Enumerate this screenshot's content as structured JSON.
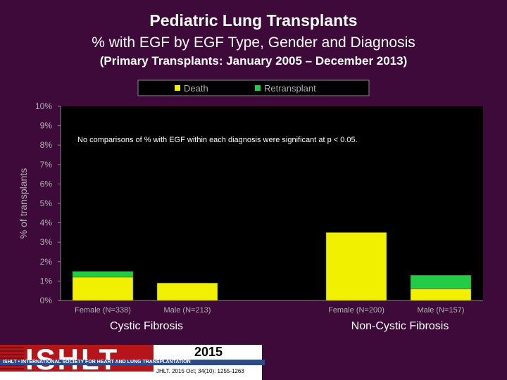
{
  "header": {
    "title": "Pediatric Lung Transplants",
    "subtitle": "% with EGF by EGF Type, Gender and Diagnosis",
    "period": "(Primary Transplants: January 2005 – December 2013)"
  },
  "note": "No comparisons of % with EGF within each diagnosis were significant at p < 0.05.",
  "footer": {
    "logo": "ISHLT",
    "org": "ISHLT • INTERNATIONAL SOCIETY FOR HEART AND LUNG TRANSPLANTATION",
    "year": "2015",
    "citation": "JHLT. 2015 Oct; 34(10): 1255-1263"
  },
  "colors": {
    "background": "#3d0a3a",
    "plot_background": "#000000",
    "death": "#f0f000",
    "retransplant": "#22cc44"
  },
  "chart_data": {
    "type": "bar",
    "stacked": true,
    "ylabel": "% of transplants",
    "ylim": [
      0,
      10
    ],
    "yticks": [
      "0%",
      "1%",
      "2%",
      "3%",
      "4%",
      "5%",
      "6%",
      "7%",
      "8%",
      "9%",
      "10%"
    ],
    "legend_position": "top",
    "grid": false,
    "categories": [
      "Female (N=338)",
      "Male (N=213)",
      "",
      "Female (N=200)",
      "Male (N=157)"
    ],
    "groups": [
      "Cystic Fibrosis",
      "Non-Cystic Fibrosis"
    ],
    "series": [
      {
        "name": "Death",
        "values": [
          1.2,
          0.9,
          0,
          3.5,
          0.6
        ]
      },
      {
        "name": "Retransplant",
        "values": [
          0.3,
          0,
          0,
          0,
          0.7
        ]
      }
    ]
  }
}
